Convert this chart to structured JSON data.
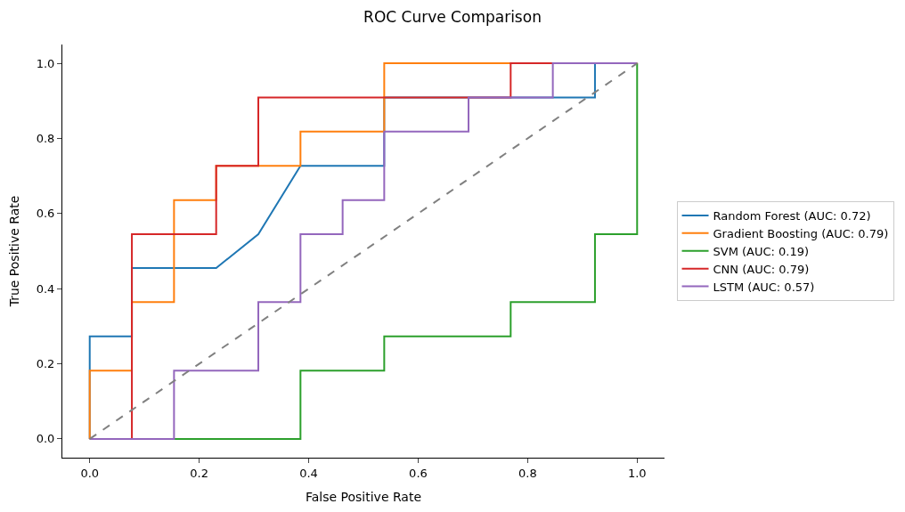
{
  "chart_data": {
    "type": "line",
    "title": "ROC Curve Comparison",
    "xlabel": "False Positive Rate",
    "ylabel": "True Positive Rate",
    "series": [
      {
        "name": "Random Forest (AUC: 0.72)",
        "color": "#1f77b4",
        "x": [
          0,
          0,
          0.077,
          0.077,
          0.231,
          0.308,
          0.385,
          0.538,
          0.538,
          0.923,
          0.923,
          1
        ],
        "values": [
          0,
          0.273,
          0.273,
          0.455,
          0.455,
          0.545,
          0.727,
          0.727,
          0.909,
          0.909,
          1,
          1
        ]
      },
      {
        "name": "Gradient Boosting (AUC: 0.79)",
        "color": "#ff7f0e",
        "x": [
          0,
          0,
          0.077,
          0.077,
          0.154,
          0.154,
          0.231,
          0.231,
          0.385,
          0.385,
          0.538,
          0.538,
          1
        ],
        "values": [
          0,
          0.182,
          0.182,
          0.364,
          0.364,
          0.636,
          0.636,
          0.727,
          0.727,
          0.818,
          0.818,
          1,
          1
        ]
      },
      {
        "name": "SVM (AUC: 0.19)",
        "color": "#2ca02c",
        "x": [
          0,
          0.385,
          0.385,
          0.538,
          0.538,
          0.769,
          0.769,
          0.923,
          0.923,
          1,
          1
        ],
        "values": [
          0,
          0,
          0.182,
          0.182,
          0.273,
          0.273,
          0.364,
          0.364,
          0.545,
          0.545,
          1
        ]
      },
      {
        "name": "CNN (AUC: 0.79)",
        "color": "#d62728",
        "x": [
          0,
          0.077,
          0.077,
          0.231,
          0.231,
          0.308,
          0.308,
          0.769,
          0.769,
          1
        ],
        "values": [
          0,
          0,
          0.545,
          0.545,
          0.727,
          0.727,
          0.909,
          0.909,
          1,
          1
        ]
      },
      {
        "name": "LSTM (AUC: 0.57)",
        "color": "#9467bd",
        "x": [
          0,
          0.154,
          0.154,
          0.308,
          0.308,
          0.385,
          0.385,
          0.462,
          0.462,
          0.538,
          0.538,
          0.692,
          0.692,
          0.846,
          0.846,
          1
        ],
        "values": [
          0,
          0,
          0.182,
          0.182,
          0.364,
          0.364,
          0.545,
          0.545,
          0.636,
          0.636,
          0.818,
          0.818,
          0.909,
          0.909,
          1,
          1
        ]
      },
      {
        "color": "#808080",
        "line_style": "dashed",
        "x": [
          0,
          1
        ],
        "values": [
          0,
          1
        ]
      }
    ],
    "xlim": [
      -0.05,
      1.05
    ],
    "ylim": [
      -0.05,
      1.05
    ],
    "xticks": [
      {
        "value": 0,
        "label": "0.0"
      },
      {
        "value": 0.2,
        "label": "0.2"
      },
      {
        "value": 0.4,
        "label": "0.4"
      },
      {
        "value": 0.6,
        "label": "0.6"
      },
      {
        "value": 0.8,
        "label": "0.8"
      },
      {
        "value": 1,
        "label": "1.0"
      }
    ],
    "yticks": [
      {
        "value": 0,
        "label": "0.0"
      },
      {
        "value": 0.2,
        "label": "0.2"
      },
      {
        "value": 0.4,
        "label": "0.4"
      },
      {
        "value": 0.6,
        "label": "0.6"
      },
      {
        "value": 0.8,
        "label": "0.8"
      },
      {
        "value": 1,
        "label": "1.0"
      }
    ],
    "legend": "right",
    "marker": "none",
    "line_style": "solid"
  }
}
